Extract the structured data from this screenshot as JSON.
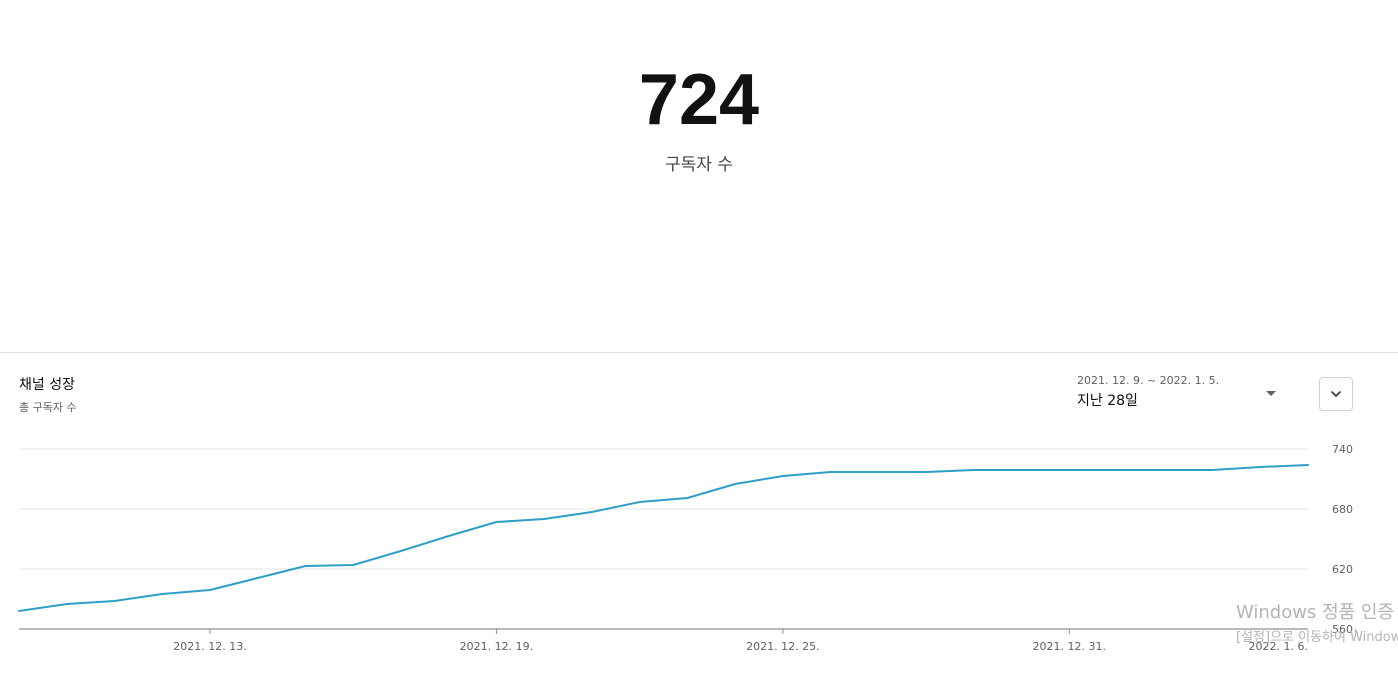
{
  "summary": {
    "value": "724",
    "label": "구독자 수"
  },
  "card": {
    "title": "채널 성장",
    "subtitle": "총 구독자 수"
  },
  "date_range": {
    "dates": "2021. 12. 9. ~ 2022. 1. 5.",
    "label": "지난 28일"
  },
  "icons": {
    "range_dropdown": "caret-down-icon",
    "expand": "chevron-down-icon"
  },
  "watermark": {
    "line1": "Windows 정품 인증",
    "line2": "[설정]으로 이동하여 Windows"
  },
  "colors": {
    "line": "#2f9fc8",
    "grid": "#e5e5e5",
    "axis": "#909090"
  },
  "chart_data": {
    "type": "line",
    "x": [
      "2021. 12. 9.",
      "2021. 12. 10.",
      "2021. 12. 11.",
      "2021. 12. 12.",
      "2021. 12. 13.",
      "2021. 12. 14.",
      "2021. 12. 15.",
      "2021. 12. 16.",
      "2021. 12. 17.",
      "2021. 12. 18.",
      "2021. 12. 19.",
      "2021. 12. 20.",
      "2021. 12. 21.",
      "2021. 12. 22.",
      "2021. 12. 23.",
      "2021. 12. 24.",
      "2021. 12. 25.",
      "2021. 12. 26.",
      "2021. 12. 27.",
      "2021. 12. 28.",
      "2021. 12. 29.",
      "2021. 12. 30.",
      "2021. 12. 31.",
      "2022. 1. 1.",
      "2022. 1. 2.",
      "2022. 1. 3.",
      "2022. 1. 4.",
      "2022. 1. 5."
    ],
    "values": [
      578,
      585,
      588,
      595,
      599,
      611,
      623,
      624,
      638,
      653,
      667,
      670,
      677,
      687,
      691,
      705,
      713,
      717,
      717,
      717,
      719,
      719,
      719,
      719,
      719,
      719,
      722,
      724
    ],
    "ylim": [
      560,
      740
    ],
    "yticks": [
      "740",
      "680",
      "620",
      "560"
    ],
    "xtick_labels": [
      {
        "label": "2021. 12. 13.",
        "index": 4
      },
      {
        "label": "2021. 12. 19.",
        "index": 10
      },
      {
        "label": "2021. 12. 25.",
        "index": 16
      },
      {
        "label": "2021. 12. 31.",
        "index": 22
      },
      {
        "label": "2022. 1. 6.",
        "index": 28
      }
    ],
    "grid": true
  }
}
